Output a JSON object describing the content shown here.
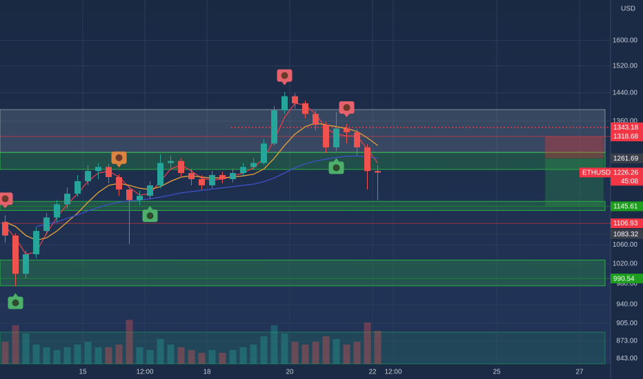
{
  "chart_data": {
    "type": "candlestick",
    "unit": "USD",
    "log_scale": true,
    "xlim": [
      13,
      27.75
    ],
    "ylim": [
      834,
      1736
    ],
    "xticks": [
      15,
      {
        "value": 16.5,
        "label": "12:00"
      },
      18,
      20,
      22,
      {
        "value": 22.5,
        "label": "12:00"
      },
      25,
      27
    ],
    "yticks": [
      {
        "value": 1600,
        "label": "1600.00"
      },
      {
        "value": 1520,
        "label": "1520.00"
      },
      {
        "value": 1440,
        "label": "1440.00"
      },
      {
        "value": 1360,
        "label": "1360.00"
      },
      {
        "value": 1060,
        "label": "1060.00"
      },
      {
        "value": 1020,
        "label": "1020.00"
      },
      {
        "value": 980,
        "label": "980.00"
      },
      {
        "value": 940,
        "label": "940.00"
      },
      {
        "value": 905,
        "label": "905.00"
      },
      {
        "value": 873,
        "label": "873.00"
      },
      {
        "value": 843,
        "label": "843.00"
      }
    ],
    "x": [
      13.125,
      13.375,
      13.625,
      13.875,
      14.125,
      14.375,
      14.625,
      14.875,
      15.125,
      15.375,
      15.625,
      15.875,
      16.125,
      16.375,
      16.625,
      16.875,
      17.125,
      17.375,
      17.625,
      17.875,
      18.125,
      18.375,
      18.625,
      18.875,
      19.125,
      19.375,
      19.625,
      19.875,
      20.125,
      20.375,
      20.625,
      20.875,
      21.125,
      21.375,
      21.625,
      21.875,
      22.125
    ],
    "open": [
      1110,
      1080,
      1000,
      1040,
      1090,
      1120,
      1150,
      1175,
      1205,
      1230,
      1240,
      1215,
      1185,
      1160,
      1170,
      1195,
      1250,
      1255,
      1225,
      1210,
      1195,
      1220,
      1210,
      1225,
      1240,
      1250,
      1300,
      1390,
      1430,
      1410,
      1380,
      1350,
      1290,
      1340,
      1330,
      1290,
      1230
    ],
    "high": [
      1125,
      1085,
      1048,
      1098,
      1130,
      1160,
      1190,
      1220,
      1245,
      1250,
      1248,
      1222,
      1192,
      1182,
      1205,
      1272,
      1268,
      1262,
      1235,
      1220,
      1230,
      1228,
      1236,
      1250,
      1262,
      1312,
      1402,
      1442,
      1438,
      1418,
      1390,
      1358,
      1385,
      1352,
      1338,
      1298,
      1245
    ],
    "low": [
      1065,
      975,
      990,
      1032,
      1082,
      1110,
      1140,
      1168,
      1195,
      1210,
      1200,
      1170,
      1062,
      1148,
      1162,
      1188,
      1235,
      1215,
      1195,
      1185,
      1188,
      1200,
      1202,
      1218,
      1232,
      1245,
      1295,
      1380,
      1395,
      1368,
      1335,
      1275,
      1280,
      1300,
      1270,
      1185,
      1160
    ],
    "close": [
      1080,
      1000,
      1040,
      1090,
      1120,
      1150,
      1175,
      1205,
      1230,
      1240,
      1215,
      1185,
      1160,
      1170,
      1195,
      1250,
      1255,
      1225,
      1210,
      1195,
      1220,
      1210,
      1225,
      1240,
      1250,
      1300,
      1390,
      1430,
      1410,
      1380,
      1350,
      1290,
      1340,
      1330,
      1290,
      1230,
      1226.26
    ],
    "volume_lim": [
      0,
      100
    ],
    "volume": [
      40,
      70,
      55,
      35,
      30,
      25,
      30,
      35,
      40,
      30,
      30,
      35,
      80,
      30,
      25,
      45,
      35,
      30,
      25,
      20,
      25,
      20,
      25,
      30,
      35,
      50,
      70,
      55,
      40,
      35,
      40,
      50,
      45,
      35,
      40,
      75,
      60
    ],
    "up_color": "#26a69a",
    "down_color": "#ef5350",
    "series": [
      {
        "color": "#e0424b",
        "values": [
          1100,
          1075,
          1040,
          1045,
          1085,
          1120,
          1150,
          1175,
          1205,
          1225,
          1230,
          1215,
          1190,
          1172,
          1175,
          1205,
          1235,
          1245,
          1230,
          1212,
          1208,
          1210,
          1218,
          1225,
          1238,
          1262,
          1310,
          1370,
          1410,
          1405,
          1380,
          1340,
          1325,
          1320,
          1320,
          1285,
          1250
        ]
      },
      {
        "color": "#e8a33a",
        "values": [
          1110,
          1100,
          1080,
          1070,
          1075,
          1090,
          1110,
          1130,
          1155,
          1178,
          1195,
          1200,
          1195,
          1188,
          1185,
          1192,
          1205,
          1215,
          1218,
          1215,
          1213,
          1213,
          1215,
          1218,
          1222,
          1235,
          1262,
          1295,
          1325,
          1345,
          1355,
          1350,
          1345,
          1340,
          1332,
          1315,
          1295
        ]
      },
      {
        "color": "#3f51c8",
        "values": [
          null,
          null,
          null,
          1100,
          1105,
          1110,
          1118,
          1126,
          1135,
          1143,
          1150,
          1155,
          1158,
          1160,
          1163,
          1167,
          1172,
          1177,
          1180,
          1183,
          1186,
          1189,
          1192,
          1195,
          1198,
          1204,
          1213,
          1225,
          1238,
          1248,
          1255,
          1260,
          1264,
          1267,
          1268,
          1266,
          1262
        ]
      }
    ],
    "zones": [
      {
        "from": 1277,
        "to": 1392,
        "color": "#9aa3b0"
      },
      {
        "from": 1234,
        "to": 1277,
        "color": "#2ecc40"
      },
      {
        "from": 1136,
        "to": 1157,
        "color": "#2ecc40"
      },
      {
        "from": 976,
        "to": 1028,
        "color": "#2ecc40"
      },
      {
        "from": 834,
        "to": 889,
        "color": "#1f8a5a"
      }
    ],
    "levels": [
      {
        "price": 1343.18,
        "color": "#f23645",
        "dotted": true
      },
      {
        "price": 1318.68,
        "color": "#f23645",
        "dotted": false
      },
      {
        "price": 1261.69,
        "color": "#3a3f4a",
        "dotted": false
      },
      {
        "price": 1145.61,
        "color": "#1e9e1e",
        "dotted": false
      },
      {
        "price": 1106.93,
        "color": "#f23645",
        "dotted": false
      },
      {
        "price": 1083.32,
        "color": "#3a3f4a",
        "dotted": false
      },
      {
        "price": 990.54,
        "color": "#1e9e1e",
        "dotted": false
      }
    ],
    "position": {
      "entry": 1261.69,
      "stop": 1318.68,
      "target": 1145.61,
      "from": 26.17,
      "to": 27.58
    },
    "ticker": {
      "symbol": "ETHUSD",
      "last": 1226.26,
      "countdown": "45:08",
      "color": "#f23645"
    },
    "signals": [
      {
        "side": "sell",
        "x": 13.125,
        "color": "#e5616c"
      },
      {
        "side": "sell",
        "x": 15.875,
        "color": "#d9843f"
      },
      {
        "side": "sell",
        "x": 19.875,
        "color": "#e5616c"
      },
      {
        "side": "sell",
        "x": 21.375,
        "color": "#e5616c"
      },
      {
        "side": "buy",
        "x": 13.375,
        "color": "#4caf6a"
      },
      {
        "side": "buy",
        "x": 16.625,
        "color": "#4caf6a"
      },
      {
        "side": "buy",
        "x": 21.125,
        "color": "#4caf6a"
      }
    ]
  }
}
